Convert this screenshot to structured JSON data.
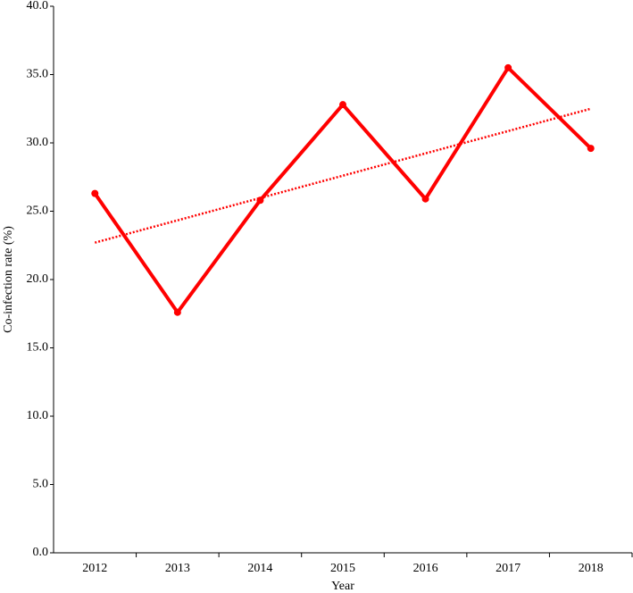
{
  "chart_data": {
    "type": "line",
    "x_label": "Year",
    "y_label": "Co-infection rate (%)",
    "categories": [
      "2012",
      "2013",
      "2014",
      "2015",
      "2016",
      "2017",
      "2018"
    ],
    "series": [
      {
        "color": "#ff0000",
        "values": [
          26.3,
          17.6,
          25.8,
          32.8,
          25.9,
          35.5,
          29.6
        ]
      }
    ],
    "trendline": {
      "start": 22.7,
      "end": 32.5,
      "color": "#ff0000",
      "style": "dotted"
    },
    "ylim": [
      0,
      40
    ],
    "yticks": [
      {
        "value": 0,
        "label": "0.0"
      },
      {
        "value": 5,
        "label": "5.0"
      },
      {
        "value": 10,
        "label": "10.0"
      },
      {
        "value": 15,
        "label": "15.0"
      },
      {
        "value": 20,
        "label": "20.0"
      },
      {
        "value": 25,
        "label": "25.0"
      },
      {
        "value": 30,
        "label": "30.0"
      },
      {
        "value": 35,
        "label": "35.0"
      },
      {
        "value": 40,
        "label": "40.0"
      }
    ],
    "grid": false
  }
}
